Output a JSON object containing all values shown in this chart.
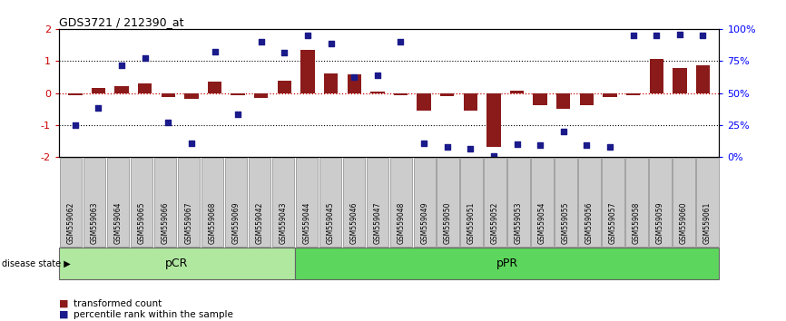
{
  "title": "GDS3721 / 212390_at",
  "samples": [
    "GSM559062",
    "GSM559063",
    "GSM559064",
    "GSM559065",
    "GSM559066",
    "GSM559067",
    "GSM559068",
    "GSM559069",
    "GSM559042",
    "GSM559043",
    "GSM559044",
    "GSM559045",
    "GSM559046",
    "GSM559047",
    "GSM559048",
    "GSM559049",
    "GSM559050",
    "GSM559051",
    "GSM559052",
    "GSM559053",
    "GSM559054",
    "GSM559055",
    "GSM559056",
    "GSM559057",
    "GSM559058",
    "GSM559059",
    "GSM559060",
    "GSM559061"
  ],
  "bar_values": [
    -0.08,
    0.15,
    0.22,
    0.3,
    -0.12,
    -0.18,
    0.35,
    -0.08,
    -0.15,
    0.38,
    1.35,
    0.62,
    0.58,
    0.05,
    -0.08,
    -0.55,
    -0.1,
    -0.55,
    -1.68,
    0.07,
    -0.38,
    -0.48,
    -0.38,
    -0.12,
    -0.08,
    1.05,
    0.78,
    0.88
  ],
  "scatter_values": [
    -1.0,
    -0.45,
    0.88,
    1.1,
    -0.9,
    -1.55,
    1.3,
    -0.65,
    1.6,
    1.25,
    1.8,
    1.55,
    0.5,
    0.55,
    1.6,
    -1.55,
    -1.68,
    -1.72,
    -1.95,
    -1.58,
    -1.62,
    -1.2,
    -1.62,
    -1.68,
    1.8,
    1.8,
    1.82,
    1.8
  ],
  "pCR_count": 10,
  "pPR_count": 18,
  "bar_color": "#8B1A1A",
  "scatter_color": "#1A1A8B",
  "ylim": [
    -2,
    2
  ],
  "right_ylim": [
    0,
    100
  ],
  "right_yticks": [
    0,
    25,
    50,
    75,
    100
  ],
  "right_yticklabels": [
    "0%",
    "25%",
    "50%",
    "75%",
    "100%"
  ],
  "dotted_lines": [
    1.0,
    -1.0
  ],
  "zero_line_color": "#CC0000",
  "background_color": "#ffffff",
  "legend_bar_label": "transformed count",
  "legend_scatter_label": "percentile rank within the sample",
  "disease_state_label": "disease state",
  "pCR_label": "pCR",
  "pPR_label": "pPR",
  "pCR_color": "#b0e8a0",
  "pPR_color": "#5cd65c",
  "sample_label_bg": "#cccccc",
  "sample_label_edge": "#888888"
}
